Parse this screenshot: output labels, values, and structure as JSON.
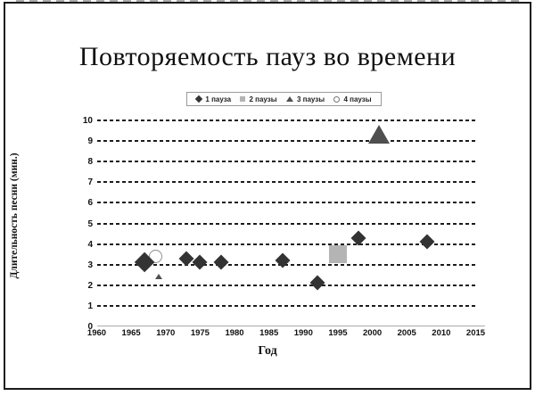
{
  "chart_data": {
    "type": "scatter",
    "title": "Повторяемость пауз во времени",
    "xlabel": "Год",
    "ylabel": "Длительность песни (мин.)",
    "xlim": [
      1960,
      2015
    ],
    "ylim": [
      0,
      10
    ],
    "x_ticks": [
      1960,
      1965,
      1970,
      1975,
      1980,
      1985,
      1990,
      1995,
      2000,
      2005,
      2010,
      2015
    ],
    "y_ticks": [
      0,
      1,
      2,
      3,
      4,
      5,
      6,
      7,
      8,
      9,
      10
    ],
    "grid": "horizontal-dashed",
    "legend_position": "top-center",
    "series": [
      {
        "name": "1 пауза",
        "marker": "diamond",
        "color": "#333333",
        "points": [
          {
            "x": 1967,
            "y": 3.1,
            "size": 23
          },
          {
            "x": 1973,
            "y": 3.3,
            "size": 17
          },
          {
            "x": 1975,
            "y": 3.1,
            "size": 17
          },
          {
            "x": 1978,
            "y": 3.1,
            "size": 17
          },
          {
            "x": 1987,
            "y": 3.2,
            "size": 17
          },
          {
            "x": 1992,
            "y": 2.1,
            "size": 17
          },
          {
            "x": 1998,
            "y": 4.3,
            "size": 17
          },
          {
            "x": 2008,
            "y": 4.1,
            "size": 17
          }
        ]
      },
      {
        "name": "2 паузы",
        "marker": "square",
        "color": "#b4b4b4",
        "points": [
          {
            "x": 1995,
            "y": 3.5,
            "size": 20
          }
        ]
      },
      {
        "name": "3 паузы",
        "marker": "triangle",
        "color": "#4f4f4f",
        "points": [
          {
            "x": 1969,
            "y": 2.4,
            "size": 8
          },
          {
            "x": 2001,
            "y": 9.3,
            "size": 25
          }
        ]
      },
      {
        "name": "4 паузы",
        "marker": "circle",
        "color": "#ffffff",
        "outline": "#8f8f8f",
        "points": [
          {
            "x": 1968.5,
            "y": 3.4,
            "size": 15
          }
        ]
      }
    ]
  }
}
